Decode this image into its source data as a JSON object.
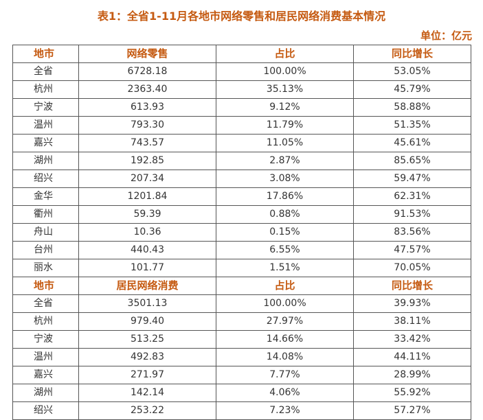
{
  "title": "表1：全省1-11月各地市网络零售和居民网络消费基本情况",
  "unit": "单位：亿元",
  "colors": {
    "header_text": "#c55a11",
    "body_text": "#333333",
    "border": "#555555"
  },
  "sections": [
    {
      "headers": [
        "地市",
        "网络零售",
        "占比",
        "同比增长"
      ],
      "rows": [
        [
          "全省",
          "6728.18",
          "100.00%",
          "53.05%"
        ],
        [
          "杭州",
          "2363.40",
          "35.13%",
          "45.79%"
        ],
        [
          "宁波",
          "613.93",
          "9.12%",
          "58.88%"
        ],
        [
          "温州",
          "793.30",
          "11.79%",
          "51.35%"
        ],
        [
          "嘉兴",
          "743.57",
          "11.05%",
          "45.61%"
        ],
        [
          "湖州",
          "192.85",
          "2.87%",
          "85.65%"
        ],
        [
          "绍兴",
          "207.34",
          "3.08%",
          "59.47%"
        ],
        [
          "金华",
          "1201.84",
          "17.86%",
          "62.31%"
        ],
        [
          "衢州",
          "59.39",
          "0.88%",
          "91.53%"
        ],
        [
          "舟山",
          "10.36",
          "0.15%",
          "83.56%"
        ],
        [
          "台州",
          "440.43",
          "6.55%",
          "47.57%"
        ],
        [
          "丽水",
          "101.77",
          "1.51%",
          "70.05%"
        ]
      ]
    },
    {
      "headers": [
        "地市",
        "居民网络消费",
        "占比",
        "同比增长"
      ],
      "rows": [
        [
          "全省",
          "3501.13",
          "100.00%",
          "39.93%"
        ],
        [
          "杭州",
          "979.40",
          "27.97%",
          "38.11%"
        ],
        [
          "宁波",
          "513.25",
          "14.66%",
          "33.42%"
        ],
        [
          "温州",
          "492.83",
          "14.08%",
          "44.11%"
        ],
        [
          "嘉兴",
          "271.97",
          "7.77%",
          "28.99%"
        ],
        [
          "湖州",
          "142.14",
          "4.06%",
          "55.92%"
        ],
        [
          "绍兴",
          "253.22",
          "7.23%",
          "57.27%"
        ]
      ]
    }
  ]
}
